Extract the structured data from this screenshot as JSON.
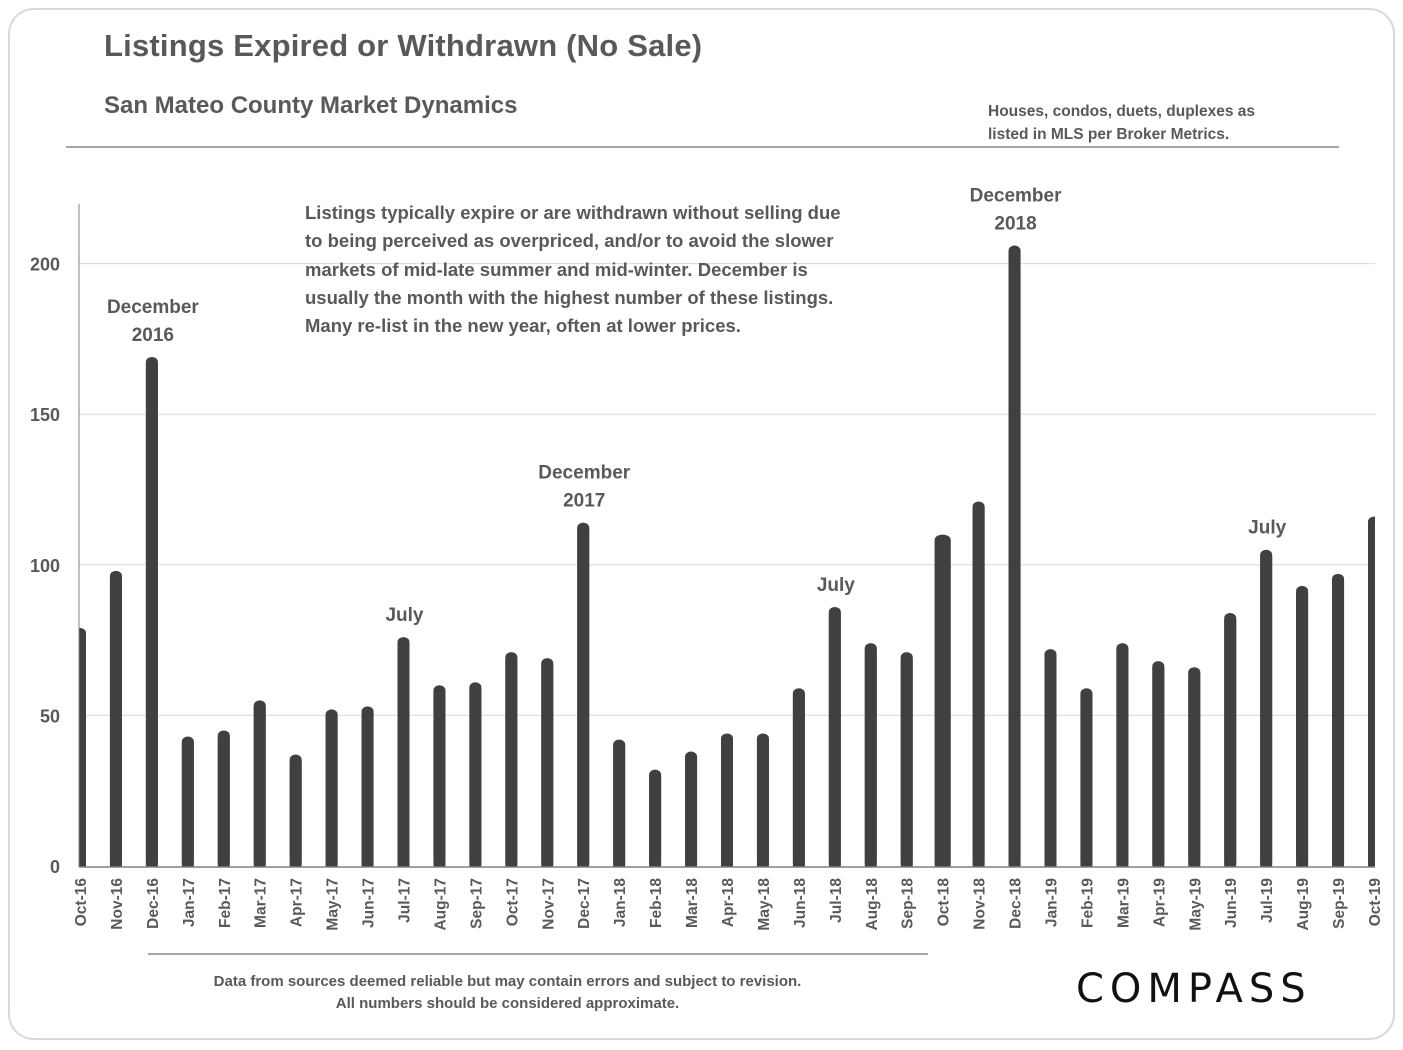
{
  "header": {
    "title": "Listings Expired or Withdrawn (No Sale)",
    "subtitle": "San Mateo County Market Dynamics",
    "note_lines": [
      "Houses, condos, duets, duplexes as",
      "listed in MLS per Broker Metrics."
    ]
  },
  "annotation_box": {
    "lines": [
      "Listings typically expire or are withdrawn without selling due",
      "to being perceived as overpriced, and/or to avoid the slower",
      "markets of mid-late summer and mid-winter. December is",
      "usually the month with the highest number of these listings.",
      "Many re-list in the new year, often at lower prices."
    ]
  },
  "footer": {
    "lines": [
      "Data from sources deemed reliable but may contain errors and subject to revision.",
      "All numbers should be considered approximate."
    ]
  },
  "brand": {
    "logo_text": "COMPASS"
  },
  "colors": {
    "bar": "#404040",
    "text": "#595959",
    "gridline": "#d9d9d9",
    "axis": "#808080"
  },
  "chart_data": {
    "type": "bar",
    "title": "Listings Expired or Withdrawn (No Sale)",
    "subtitle": "San Mateo County Market Dynamics",
    "xlabel": "",
    "ylabel": "",
    "ylim": [
      0,
      220
    ],
    "yticks": [
      0,
      50,
      100,
      150,
      200
    ],
    "grid": true,
    "legend": "none",
    "categories": [
      "Oct-16",
      "Nov-16",
      "Dec-16",
      "Jan-17",
      "Feb-17",
      "Mar-17",
      "Apr-17",
      "May-17",
      "Jun-17",
      "Jul-17",
      "Aug-17",
      "Sep-17",
      "Oct-17",
      "Nov-17",
      "Dec-17",
      "Jan-18",
      "Feb-18",
      "Mar-18",
      "Apr-18",
      "May-18",
      "Jun-18",
      "Jul-18",
      "Aug-18",
      "Sep-18",
      "Oct-18",
      "Nov-18",
      "Dec-18",
      "Jan-19",
      "Feb-19",
      "Mar-19",
      "Apr-19",
      "May-19",
      "Jun-19",
      "Jul-19",
      "Aug-19",
      "Sep-19",
      "Oct-19"
    ],
    "values": [
      79,
      98,
      169,
      43,
      45,
      55,
      37,
      52,
      53,
      76,
      60,
      61,
      71,
      69,
      114,
      42,
      32,
      38,
      44,
      44,
      59,
      86,
      74,
      71,
      110,
      121,
      206,
      72,
      59,
      74,
      68,
      66,
      84,
      105,
      93,
      97,
      116
    ],
    "annotations": [
      {
        "category": "Dec-16",
        "lines": [
          "December",
          "2016"
        ]
      },
      {
        "category": "Jul-17",
        "lines": [
          "July"
        ]
      },
      {
        "category": "Dec-17",
        "lines": [
          "December",
          "2017"
        ]
      },
      {
        "category": "Jul-18",
        "lines": [
          "July"
        ]
      },
      {
        "category": "Dec-18",
        "lines": [
          "December",
          "2018"
        ]
      },
      {
        "category": "Jul-19",
        "lines": [
          "July"
        ]
      }
    ]
  }
}
